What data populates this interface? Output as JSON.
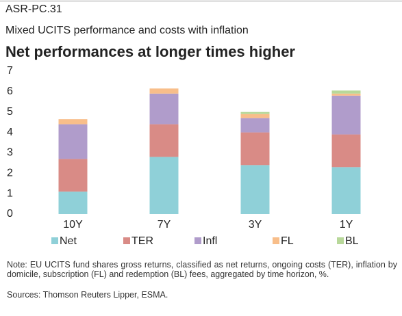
{
  "chart_data": {
    "type": "stacked_bar",
    "code": "ASR-PC.31",
    "subtitle": "Mixed UCITS performance and costs with inflation",
    "title": "Net performances at longer times higher",
    "categories": [
      "10Y",
      "7Y",
      "3Y",
      "1Y"
    ],
    "series": [
      {
        "name": "Net",
        "color": "#8fd0d8",
        "values": [
          1.1,
          2.8,
          2.4,
          2.3
        ]
      },
      {
        "name": "TER",
        "color": "#d98b86",
        "values": [
          1.6,
          1.6,
          1.6,
          1.6
        ]
      },
      {
        "name": "Infl",
        "color": "#b09ccb",
        "values": [
          1.7,
          1.5,
          0.7,
          1.9
        ]
      },
      {
        "name": "FL",
        "color": "#f8be8a",
        "values": [
          0.25,
          0.25,
          0.2,
          0.1
        ]
      },
      {
        "name": "BL",
        "color": "#b8d89a",
        "values": [
          0,
          0,
          0.1,
          0.15
        ]
      }
    ],
    "ylim": [
      0,
      7
    ],
    "yticks": [
      0,
      1,
      2,
      3,
      4,
      5,
      6,
      7
    ],
    "note": "Note: EU UCITS fund shares gross returns, classified as net returns, ongoing costs (TER), inflation by domicile, subscription (FL) and redemption (BL) fees, aggregated by time horizon,  %.",
    "sources": "Sources: Thomson Reuters Lipper, ESMA."
  }
}
